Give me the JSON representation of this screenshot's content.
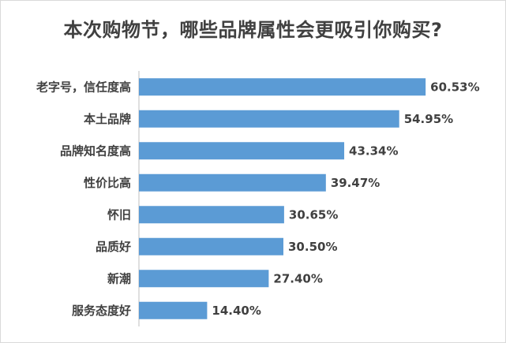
{
  "chart_data": {
    "type": "bar",
    "orientation": "horizontal",
    "title": "本次购物节，哪些品牌属性会更吸引你购买?",
    "categories": [
      "老字号，信任度高",
      "本土品牌",
      "品牌知名度高",
      "性价比高",
      "怀旧",
      "品质好",
      "新潮",
      "服务态度好"
    ],
    "values": [
      60.53,
      54.95,
      43.34,
      39.47,
      30.65,
      30.5,
      27.4,
      14.4
    ],
    "value_labels": [
      "60.53%",
      "54.95%",
      "43.34%",
      "39.47%",
      "30.65%",
      "30.50%",
      "27.40%",
      "14.40%"
    ],
    "xlabel": "",
    "ylabel": "",
    "grid": false,
    "legend": "none",
    "bar_color": "#5b9bd5",
    "axis_color": "#bfbfbf"
  }
}
